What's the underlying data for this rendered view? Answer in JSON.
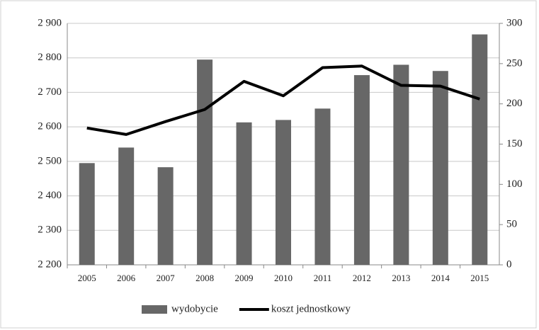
{
  "chart_data": {
    "type": "bar-line",
    "categories": [
      "2005",
      "2006",
      "2007",
      "2008",
      "2009",
      "2010",
      "2011",
      "2012",
      "2013",
      "2014",
      "2015"
    ],
    "series": [
      {
        "name": "wydobycie",
        "type": "bar",
        "color": "#676767",
        "values": [
          2495,
          2540,
          2483,
          2795,
          2613,
          2620,
          2653,
          2750,
          2780,
          2762,
          2868
        ]
      },
      {
        "name": "koszt jednostkowy",
        "type": "line",
        "axis": "y2",
        "color": "#000000",
        "values": [
          170,
          162,
          178,
          193,
          228,
          210,
          245,
          247,
          223,
          222,
          206
        ]
      }
    ],
    "ylim": [
      2200,
      2900
    ],
    "yticks": [
      {
        "value": 2200,
        "label": "2 200"
      },
      {
        "value": 2300,
        "label": "2 300"
      },
      {
        "value": 2400,
        "label": "2 400"
      },
      {
        "value": 2500,
        "label": "2 500"
      },
      {
        "value": 2600,
        "label": "2 600"
      },
      {
        "value": 2700,
        "label": "2 700"
      },
      {
        "value": 2800,
        "label": "2 800"
      },
      {
        "value": 2900,
        "label": "2 900"
      }
    ],
    "y2lim": [
      0,
      300
    ],
    "y2ticks": [
      0,
      50,
      100,
      150,
      200,
      250,
      300
    ],
    "grid": true,
    "legend": "bottom"
  }
}
